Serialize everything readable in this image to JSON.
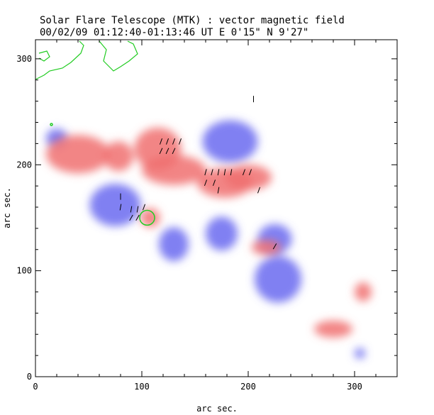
{
  "header": {
    "title": "Solar Flare Telescope (MTK) : vector magnetic field",
    "subtitle": "00/02/09  01:12:40-01:13:46 UT    E 0'15\"   N 9'27\""
  },
  "colors": {
    "positive": "#f07070",
    "negative": "#6a6af0",
    "contour": "#22cc22",
    "vectors": "#000000"
  },
  "chart_data": {
    "type": "heatmap",
    "xlabel": "arc sec.",
    "ylabel": "arc sec.",
    "xlim": [
      0,
      340
    ],
    "ylim": [
      0,
      318
    ],
    "x_ticks": [
      0,
      100,
      200,
      300
    ],
    "y_ticks": [
      0,
      100,
      200,
      300
    ],
    "positive_regions": [
      {
        "x": 115,
        "y": 215,
        "rx": 22,
        "ry": 20
      },
      {
        "x": 130,
        "y": 195,
        "rx": 30,
        "ry": 14
      },
      {
        "x": 178,
        "y": 183,
        "rx": 26,
        "ry": 14
      },
      {
        "x": 200,
        "y": 188,
        "rx": 22,
        "ry": 12
      },
      {
        "x": 40,
        "y": 210,
        "rx": 30,
        "ry": 18
      },
      {
        "x": 78,
        "y": 208,
        "rx": 14,
        "ry": 14
      },
      {
        "x": 108,
        "y": 150,
        "rx": 9,
        "ry": 9
      },
      {
        "x": 217,
        "y": 122,
        "rx": 14,
        "ry": 7
      },
      {
        "x": 308,
        "y": 80,
        "rx": 8,
        "ry": 9
      },
      {
        "x": 280,
        "y": 45,
        "rx": 18,
        "ry": 8
      }
    ],
    "negative_regions": [
      {
        "x": 183,
        "y": 222,
        "rx": 26,
        "ry": 20
      },
      {
        "x": 75,
        "y": 162,
        "rx": 24,
        "ry": 20
      },
      {
        "x": 228,
        "y": 92,
        "rx": 22,
        "ry": 22
      },
      {
        "x": 225,
        "y": 130,
        "rx": 16,
        "ry": 14
      },
      {
        "x": 175,
        "y": 135,
        "rx": 15,
        "ry": 16
      },
      {
        "x": 130,
        "y": 125,
        "rx": 14,
        "ry": 16
      },
      {
        "x": 20,
        "y": 225,
        "rx": 10,
        "ry": 9
      },
      {
        "x": 305,
        "y": 22,
        "rx": 5,
        "ry": 5
      }
    ],
    "vectors": [
      {
        "x": 118,
        "y": 222,
        "a": 70
      },
      {
        "x": 124,
        "y": 222,
        "a": 70
      },
      {
        "x": 130,
        "y": 222,
        "a": 70
      },
      {
        "x": 136,
        "y": 222,
        "a": 70
      },
      {
        "x": 118,
        "y": 213,
        "a": 65
      },
      {
        "x": 124,
        "y": 213,
        "a": 65
      },
      {
        "x": 130,
        "y": 213,
        "a": 65
      },
      {
        "x": 160,
        "y": 193,
        "a": 75
      },
      {
        "x": 166,
        "y": 193,
        "a": 75
      },
      {
        "x": 172,
        "y": 193,
        "a": 80
      },
      {
        "x": 178,
        "y": 193,
        "a": 80
      },
      {
        "x": 184,
        "y": 193,
        "a": 80
      },
      {
        "x": 196,
        "y": 193,
        "a": 70
      },
      {
        "x": 202,
        "y": 193,
        "a": 70
      },
      {
        "x": 160,
        "y": 183,
        "a": 70
      },
      {
        "x": 168,
        "y": 183,
        "a": 70
      },
      {
        "x": 172,
        "y": 176,
        "a": 80
      },
      {
        "x": 210,
        "y": 176,
        "a": 70
      },
      {
        "x": 80,
        "y": 170,
        "a": 90
      },
      {
        "x": 80,
        "y": 160,
        "a": 80
      },
      {
        "x": 90,
        "y": 158,
        "a": 80
      },
      {
        "x": 96,
        "y": 158,
        "a": 80
      },
      {
        "x": 102,
        "y": 160,
        "a": 70
      },
      {
        "x": 96,
        "y": 150,
        "a": 60
      },
      {
        "x": 90,
        "y": 150,
        "a": 60
      },
      {
        "x": 225,
        "y": 123,
        "a": 60
      },
      {
        "x": 205,
        "y": 262,
        "a": 90
      }
    ],
    "contours": [
      {
        "cx": 105,
        "cy": 150,
        "rx": 7,
        "ry": 7
      },
      {
        "cx": 15,
        "cy": 238,
        "rx": 1,
        "ry": 1
      }
    ]
  }
}
